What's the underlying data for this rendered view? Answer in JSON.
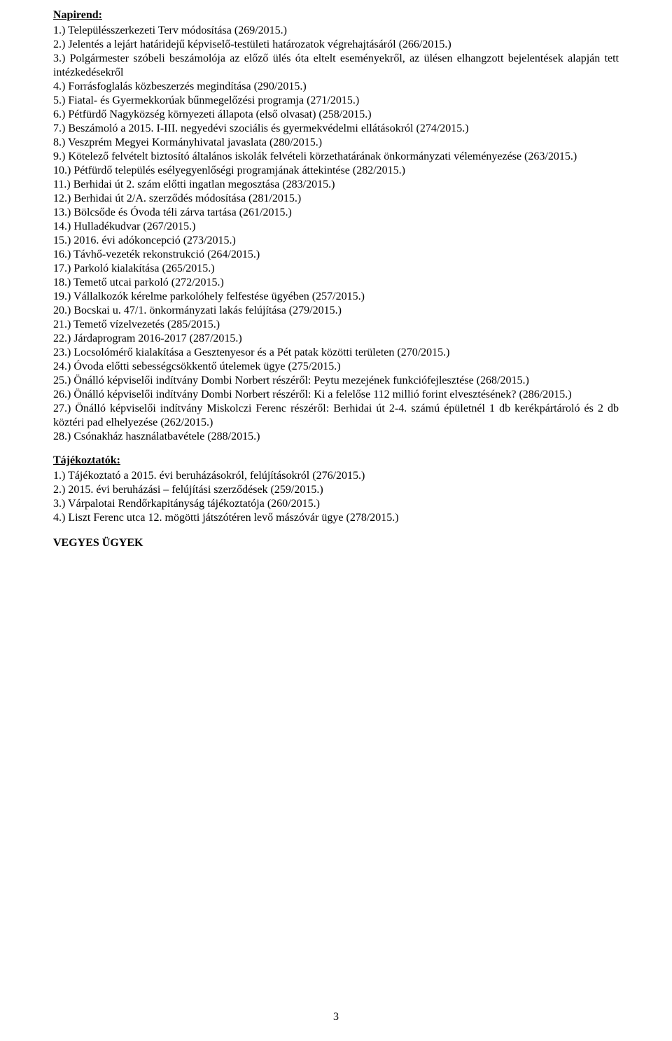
{
  "napirend": {
    "heading": "Napirend:",
    "items": [
      "1.) Településszerkezeti Terv módosítása (269/2015.)",
      "2.) Jelentés a lejárt határidejű képviselő-testületi határozatok végrehajtásáról (266/2015.)",
      "3.) Polgármester szóbeli beszámolója az előző ülés óta eltelt eseményekről, az ülésen elhangzott bejelentések alapján tett intézkedésekről",
      "4.) Forrásfoglalás közbeszerzés megindítása (290/2015.)",
      "5.) Fiatal- és Gyermekkorúak bűnmegelőzési programja (271/2015.)",
      "6.) Pétfürdő Nagyközség környezeti állapota (első olvasat) (258/2015.)",
      "7.) Beszámoló a 2015. I-III. negyedévi szociális és gyermekvédelmi ellátásokról (274/2015.)",
      "8.) Veszprém Megyei Kormányhivatal javaslata (280/2015.)",
      "9.) Kötelező felvételt biztosító általános iskolák felvételi körzethatárának önkormányzati véleményezése (263/2015.)",
      "10.) Pétfürdő település esélyegyenlőségi programjának áttekintése (282/2015.)",
      "11.) Berhidai út 2. szám előtti ingatlan megosztása (283/2015.)",
      "12.) Berhidai út 2/A. szerződés módosítása (281/2015.)",
      "13.) Bölcsőde és Óvoda téli zárva tartása (261/2015.)",
      "14.) Hulladékudvar (267/2015.)",
      "15.) 2016. évi adókoncepció (273/2015.)",
      "16.) Távhő-vezeték rekonstrukció (264/2015.)",
      "17.) Parkoló kialakítása (265/2015.)",
      "18.) Temető utcai parkoló (272/2015.)",
      "19.) Vállalkozók kérelme parkolóhely felfestése ügyében (257/2015.)",
      "20.) Bocskai u. 47/1. önkormányzati lakás felújítása (279/2015.)",
      "21.) Temető vízelvezetés (285/2015.)",
      "22.) Járdaprogram 2016-2017 (287/2015.)",
      "23.) Locsolómérő kialakítása a Gesztenyesor és a Pét patak közötti területen (270/2015.)",
      "24.) Óvoda előtti sebességcsökkentő útelemek ügye (275/2015.)",
      "25.) Önálló képviselői indítvány Dombi Norbert részéről: Peytu mezejének funkciófejlesztése (268/2015.)",
      "26.) Önálló képviselői indítvány Dombi Norbert részéről: Ki a felelőse 112 millió forint elvesztésének? (286/2015.)",
      "27.) Önálló képviselői indítvány Miskolczi Ferenc részéről: Berhidai út 2-4. számú épületnél 1 db kerékpártároló és 2 db köztéri pad elhelyezése (262/2015.)",
      "28.) Csónakház használatbavétele (288/2015.)"
    ]
  },
  "tajekoztatok": {
    "heading": "Tájékoztatók:",
    "items": [
      "1.) Tájékoztató a 2015. évi beruházásokról, felújításokról (276/2015.)",
      "2.) 2015. évi beruházási – felújítási szerződések (259/2015.)",
      "3.) Várpalotai Rendőrkapitányság tájékoztatója (260/2015.)",
      "4.) Liszt Ferenc utca 12. mögötti játszótéren levő mászóvár ügye (278/2015.)"
    ]
  },
  "vegyes": "VEGYES ÜGYEK",
  "page_number": "3",
  "style": {
    "font_family": "Times New Roman",
    "body_fontsize_pt": 12,
    "text_color": "#000000",
    "background_color": "#ffffff",
    "heading_bold": true,
    "heading_underline": true
  }
}
